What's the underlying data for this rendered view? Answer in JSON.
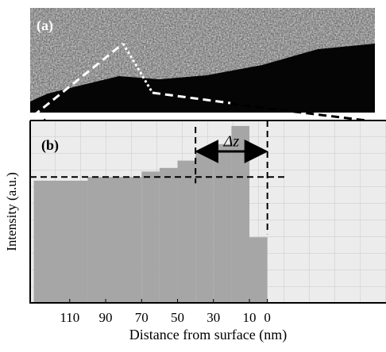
{
  "panel_a": {
    "label": "(a)"
  },
  "chart_data": {
    "type": "histogram",
    "panel_label": "(b)",
    "xlabel": "Distance from surface (nm)",
    "ylabel": "Intensity (a.u.)",
    "bins": [
      130,
      100,
      70,
      60,
      50,
      40,
      30,
      20,
      10,
      0
    ],
    "values": [
      67,
      69,
      72,
      74,
      78,
      83,
      87,
      97,
      36
    ],
    "color": "#a6a6a6",
    "xlim": [
      132,
      -66
    ],
    "ylim": [
      0,
      100
    ],
    "xticks": [
      110,
      90,
      70,
      50,
      30,
      10,
      0
    ],
    "annotation": {
      "text": "Δz",
      "range": [
        40,
        0
      ],
      "level": 69
    }
  }
}
